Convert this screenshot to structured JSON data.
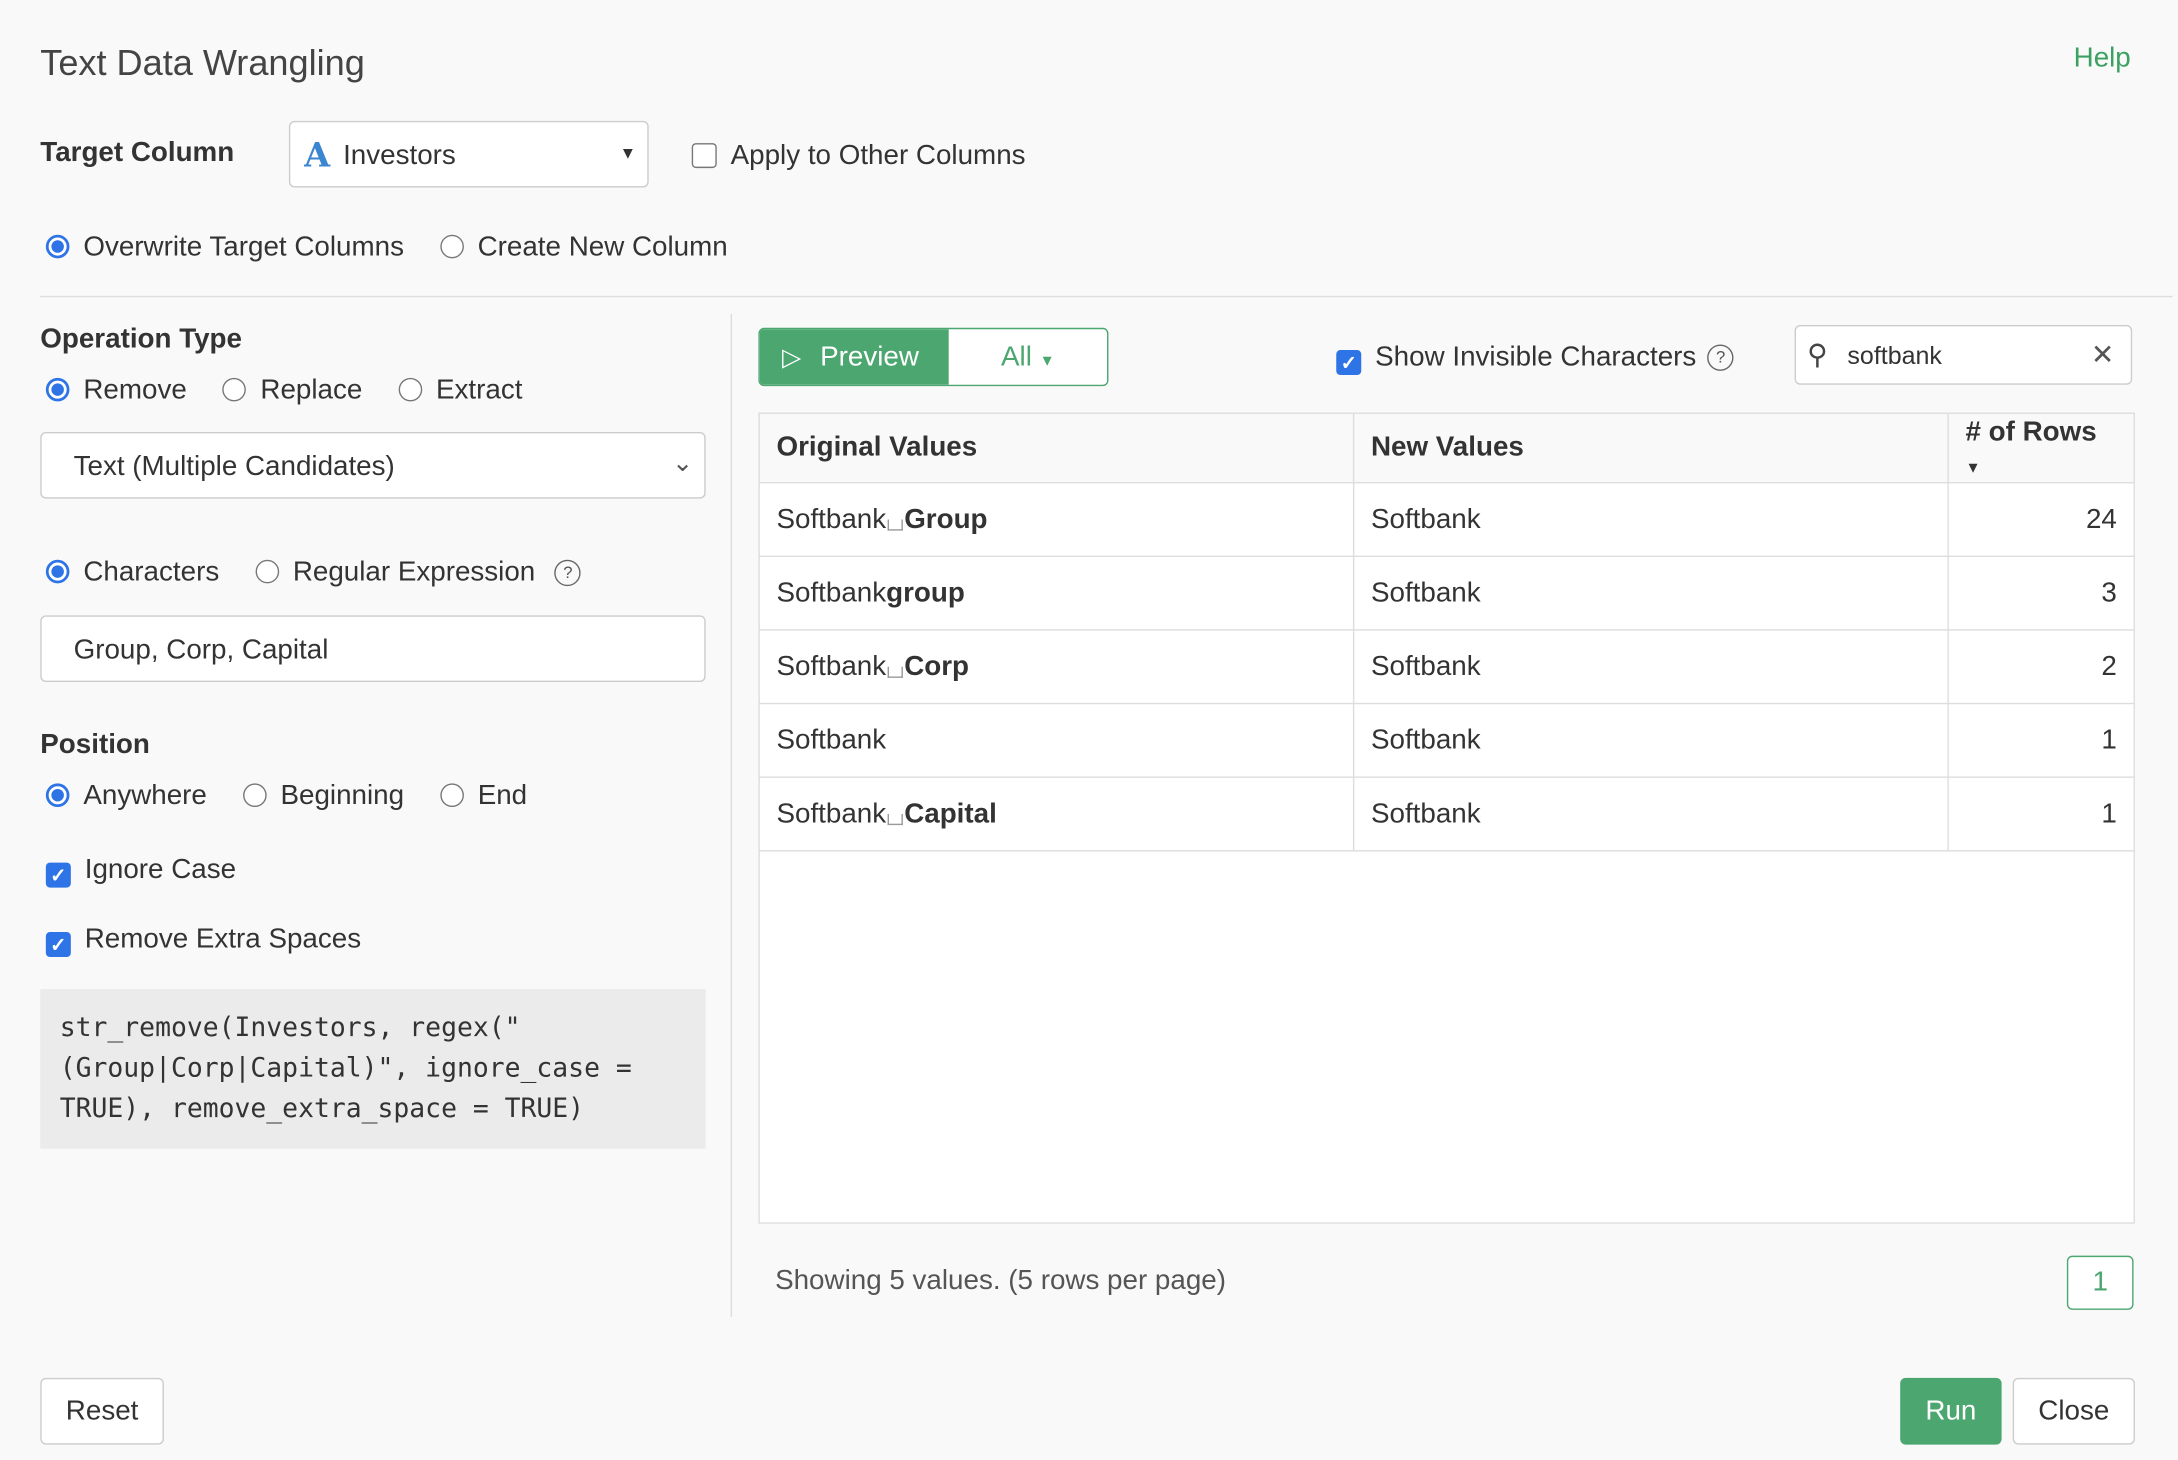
{
  "header": {
    "title": "Text Data Wrangling",
    "help": "Help"
  },
  "target": {
    "label": "Target Column",
    "column_type_icon": "A",
    "column": "Investors",
    "apply_other": "Apply to Other Columns",
    "apply_other_checked": false
  },
  "output_mode": {
    "options": [
      "Overwrite Target Columns",
      "Create New Column"
    ],
    "selected": 0
  },
  "operation": {
    "label": "Operation Type",
    "options": [
      "Remove",
      "Replace",
      "Extract"
    ],
    "selected": 0,
    "mode": "Text (Multiple Candidates)"
  },
  "match": {
    "options": [
      "Characters",
      "Regular Expression"
    ],
    "selected": 0,
    "value": "Group, Corp, Capital"
  },
  "position": {
    "label": "Position",
    "options": [
      "Anywhere",
      "Beginning",
      "End"
    ],
    "selected": 0
  },
  "ignore_case": {
    "label": "Ignore Case",
    "checked": true
  },
  "remove_spaces": {
    "label": "Remove Extra Spaces",
    "checked": true
  },
  "code": "str_remove(Investors, regex(\"(Group|Corp|Capital)\", ignore_case = TRUE), remove_extra_space = TRUE)",
  "preview": {
    "button": "Preview",
    "filter": "All",
    "show_invisible": "Show Invisible Characters",
    "show_invisible_checked": true,
    "search": "softbank"
  },
  "table": {
    "headers": [
      "Original Values",
      "New Values",
      "# of Rows"
    ],
    "rows": [
      {
        "orig_prefix": "Softbank",
        "space": true,
        "orig_removed": "Group",
        "new": "Softbank",
        "count": "24"
      },
      {
        "orig_prefix": "Softbank",
        "space": false,
        "orig_removed": "group",
        "new": "Softbank",
        "count": "3"
      },
      {
        "orig_prefix": "Softbank",
        "space": true,
        "orig_removed": "Corp",
        "new": "Softbank",
        "count": "2"
      },
      {
        "orig_prefix": "Softbank",
        "space": false,
        "orig_removed": "",
        "new": "Softbank",
        "count": "1"
      },
      {
        "orig_prefix": "Softbank",
        "space": true,
        "orig_removed": "Capital",
        "new": "Softbank",
        "count": "1"
      }
    ]
  },
  "footer": {
    "status": "Showing 5 values. (5 rows per page)",
    "page": "1",
    "reset": "Reset",
    "run": "Run",
    "close": "Close"
  },
  "colors": {
    "accent": "#4ba670",
    "primary": "#2e74e6"
  }
}
